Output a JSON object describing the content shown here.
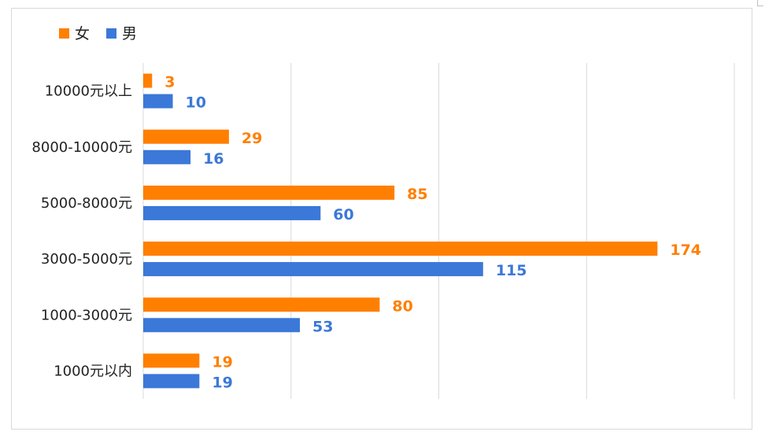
{
  "chart_data": {
    "type": "bar",
    "orientation": "horizontal",
    "categories": [
      "10000元以上",
      "8000-10000元",
      "5000-8000元",
      "3000-5000元",
      "1000-3000元",
      "1000元以内"
    ],
    "series": [
      {
        "name": "女",
        "color": "#FF7F00",
        "values": [
          3,
          29,
          85,
          174,
          80,
          19
        ]
      },
      {
        "name": "男",
        "color": "#3B78D8",
        "values": [
          10,
          16,
          60,
          115,
          53,
          19
        ]
      }
    ],
    "xlim": [
      0,
      200
    ],
    "grid": true,
    "legend_position": "top-left",
    "data_labels": true
  }
}
